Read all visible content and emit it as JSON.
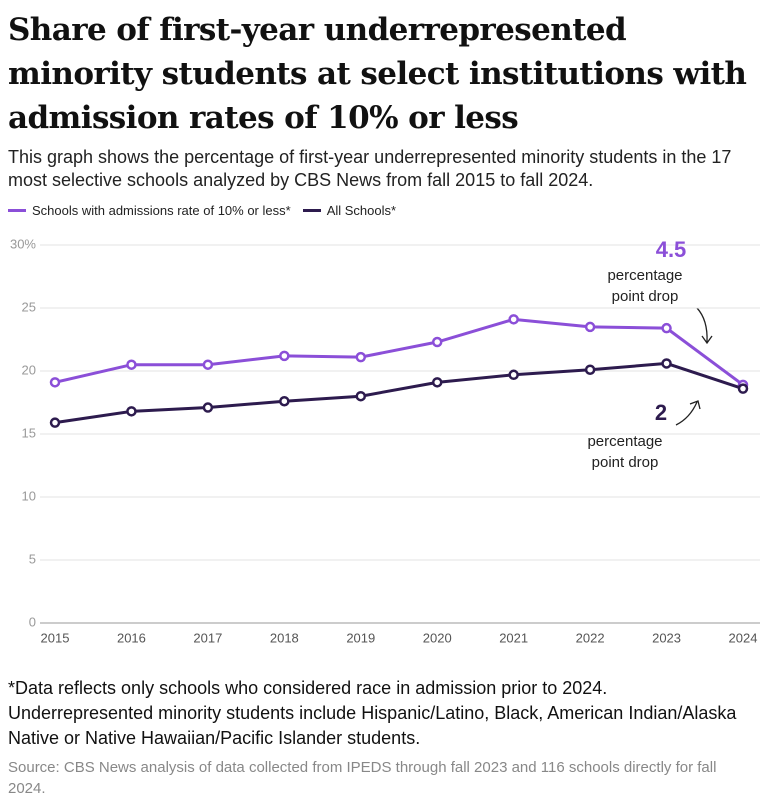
{
  "chart_data": {
    "type": "line",
    "title": "Share of first-year underrepresented minority students at select institutions with admission rates of 10% or less",
    "subtitle": "This graph shows the percentage of first-year underrepresented minority students in the 17 most selective schools analyzed by CBS News from fall 2015 to fall 2024.",
    "categories": [
      "2015",
      "2016",
      "2017",
      "2018",
      "2019",
      "2020",
      "2021",
      "2022",
      "2023",
      "2024"
    ],
    "series": [
      {
        "name": "Schools with admissions rate of 10% or less*",
        "color": "#8b4fd8",
        "values": [
          19.1,
          20.5,
          20.5,
          21.2,
          21.1,
          22.3,
          24.1,
          23.5,
          23.4,
          18.9
        ]
      },
      {
        "name": "All Schools*",
        "color": "#2d1b4e",
        "values": [
          15.9,
          16.8,
          17.1,
          17.6,
          18.0,
          19.1,
          19.7,
          20.1,
          20.6,
          18.6
        ]
      }
    ],
    "ylim": [
      0,
      30
    ],
    "yticks": [
      0,
      5,
      10,
      15,
      20,
      25,
      {
        "value": 30,
        "label": "30%"
      }
    ],
    "grid": true,
    "annotations": [
      {
        "label": "4.5",
        "lines": [
          "percentage",
          "point drop"
        ]
      },
      {
        "label": "2",
        "lines": [
          "percentage",
          "point drop"
        ]
      }
    ],
    "note": "*Data reflects only schools who considered race in admission prior to 2024. Underrepresented minority students include Hispanic/Latino, Black, American Indian/Alaska Native or Native Hawaiian/Pacific Islander students.",
    "source": "Source: CBS News analysis of data collected from IPEDS through fall 2023 and 116 schools directly for fall 2024."
  }
}
